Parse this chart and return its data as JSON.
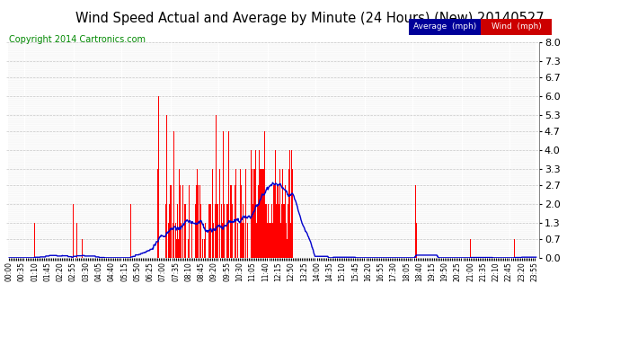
{
  "title": "Wind Speed Actual and Average by Minute (24 Hours) (New) 20140527",
  "copyright": "Copyright 2014 Cartronics.com",
  "wind_color": "#ff0000",
  "avg_color": "#0000cc",
  "bg_color": "#ffffff",
  "grid_color": "#bbbbbb",
  "yticks": [
    0.0,
    0.7,
    1.3,
    2.0,
    2.7,
    3.3,
    4.0,
    4.7,
    5.3,
    6.0,
    6.7,
    7.3,
    8.0
  ],
  "ylim": [
    0.0,
    8.0
  ],
  "total_minutes": 1440,
  "bar_width": 1.0,
  "avg_legend_color": "#000099",
  "wind_legend_color": "#cc0000",
  "label_interval_min": 35
}
